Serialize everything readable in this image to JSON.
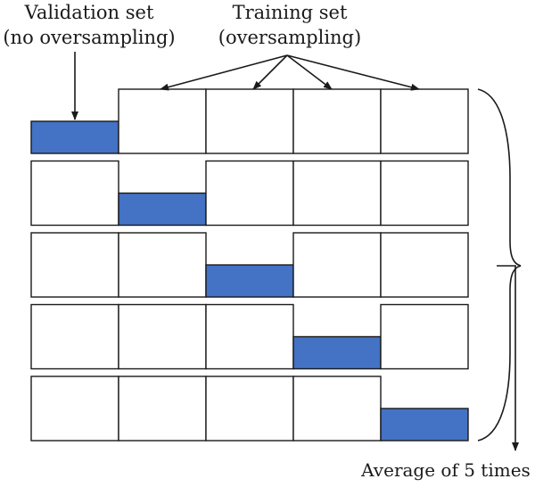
{
  "labels": {
    "validation_set": "Validation set",
    "validation_note": "(no oversampling)",
    "training_set": "Training set",
    "training_note": "(oversampling)",
    "average": "Average of 5 times"
  },
  "grid": {
    "rows": 5,
    "cols": 5,
    "validation_fold_per_row": [
      0,
      1,
      2,
      3,
      4
    ]
  },
  "colors": {
    "validation_fill": "#4472c4",
    "training_fill": "#ffffff",
    "stroke": "#1a1a1a"
  }
}
